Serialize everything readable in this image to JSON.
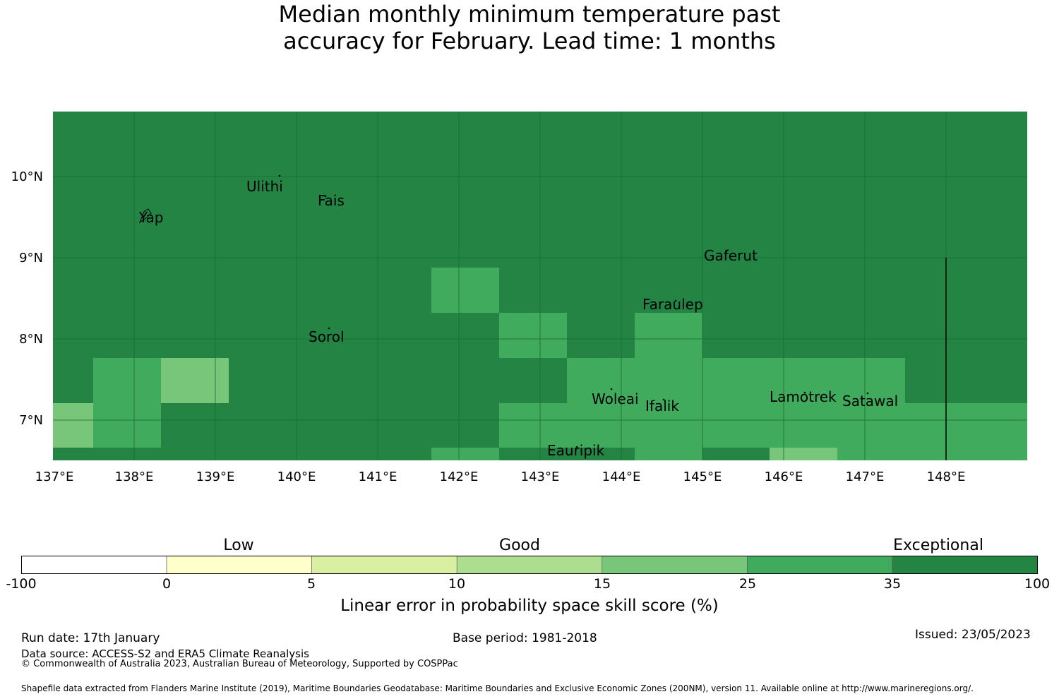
{
  "title": {
    "line1": "Median monthly minimum temperature past",
    "line2": "accuracy for February. Lead time: 1 months"
  },
  "map": {
    "background_color": "#238443",
    "lat_labels": [
      "10°N",
      "9°N",
      "8°N",
      "7°N"
    ],
    "lon_labels": [
      "137°E",
      "138°E",
      "139°E",
      "140°E",
      "141°E",
      "142°E",
      "143°E",
      "144°E",
      "145°E",
      "146°E",
      "147°E",
      "148°E"
    ],
    "places": [
      "Ulithi",
      "Fais",
      "Yap",
      "Gaferut",
      "Faraulep",
      "Sorol",
      "Woleai",
      "Ifalik",
      "Lamotrek",
      "Satawal",
      "Eauripik"
    ]
  },
  "colorbar": {
    "category_labels": [
      "Low",
      "Good",
      "Exceptional"
    ],
    "tick_labels": [
      "-100",
      "0",
      "5",
      "10",
      "15",
      "25",
      "35",
      "100"
    ],
    "colors": [
      "#ffffff",
      "#ffffcc",
      "#d9f0a3",
      "#addd8e",
      "#78c679",
      "#41ab5d",
      "#238443"
    ],
    "label": "Linear error in probability space skill score (%)"
  },
  "footer": {
    "run_date": "Run date: 17th January",
    "base_period": "Base period: 1981-2018",
    "issued": "Issued: 23/05/2023",
    "data_source": "Data source: ACCESS-S2 and ERA5 Climate Reanalysis",
    "copyright": "© Commonwealth of Australia 2023, Australian Bureau of Meteorology, Supported by COSPPac",
    "shapefile": "Shapefile data extracted from Flanders Marine Institute (2019), Maritime Boundaries Geodatabase: Maritime Boundaries and Exclusive Economic Zones (200NM), version 11. Available online at http://www.marineregions.org/."
  }
}
